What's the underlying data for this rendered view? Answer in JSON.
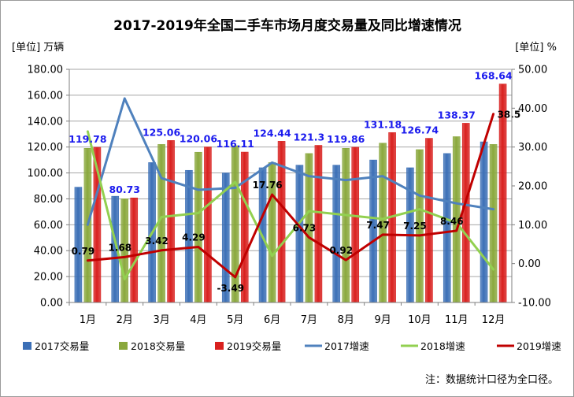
{
  "chart_data": {
    "type": "bar",
    "title": "2017-2019年全国二手车市场月度交易量及同比增速情况",
    "left_unit": "[单位] 万辆",
    "right_unit": "[单位] %",
    "note": "注：数据统计口径为全口径。",
    "categories": [
      "1月",
      "2月",
      "3月",
      "4月",
      "5月",
      "6月",
      "7月",
      "8月",
      "9月",
      "10月",
      "11月",
      "12月"
    ],
    "left_axis": {
      "min": 0,
      "max": 180,
      "step": 20,
      "labels": [
        "0.00",
        "20.00",
        "40.00",
        "60.00",
        "80.00",
        "100.00",
        "120.00",
        "140.00",
        "160.00",
        "180.00"
      ]
    },
    "right_axis": {
      "min": -10,
      "max": 50,
      "step": 10,
      "labels": [
        "-10.00",
        "0.00",
        "10.00",
        "20.00",
        "30.00",
        "40.00",
        "50.00"
      ]
    },
    "bar_series": [
      {
        "name": "2017交易量",
        "color": "#3b6fb6",
        "values": [
          89,
          82,
          108,
          102,
          100,
          104,
          106,
          106,
          110,
          104,
          115,
          124
        ]
      },
      {
        "name": "2018交易量",
        "color": "#8aa83c",
        "values": [
          119,
          80,
          122,
          116,
          121,
          108,
          115,
          119,
          123,
          118,
          128,
          122
        ]
      },
      {
        "name": "2019交易量",
        "color": "#d9201e",
        "values": [
          119.78,
          80.73,
          125.06,
          120.06,
          116.11,
          124.44,
          121.3,
          119.86,
          131.18,
          126.74,
          138.37,
          168.64
        ],
        "labels": [
          "119.78",
          "80.73",
          "125.06",
          "120.06",
          "116.11",
          "124.44",
          "121.3",
          "119.86",
          "131.18",
          "126.74",
          "138.37",
          "168.64"
        ]
      }
    ],
    "line_series": [
      {
        "name": "2017增速",
        "color": "#4f81bd",
        "values": [
          10,
          42.5,
          22,
          19,
          19.5,
          26,
          22.5,
          21.5,
          22.5,
          17.5,
          15.5,
          14
        ]
      },
      {
        "name": "2018增速",
        "color": "#92d050",
        "values": [
          34,
          -4,
          12,
          13,
          21,
          2,
          13.5,
          12.5,
          11.5,
          14,
          10.5,
          -1.5
        ]
      },
      {
        "name": "2019增速",
        "color": "#c00000",
        "values": [
          0.79,
          1.68,
          3.42,
          4.29,
          -3.49,
          17.76,
          6.73,
          0.92,
          7.47,
          7.25,
          8.46,
          38.5
        ],
        "labels": [
          "0.79",
          "1.68",
          "3.42",
          "4.29",
          "-3.49",
          "17.76",
          "6.73",
          "0.92",
          "7.47",
          "7.25",
          "8.46",
          "38.5"
        ]
      }
    ],
    "legend": [
      "2017交易量",
      "2018交易量",
      "2019交易量",
      "2017增速",
      "2018增速",
      "2019增速"
    ],
    "legend_placement": "bottom",
    "grid": true
  }
}
